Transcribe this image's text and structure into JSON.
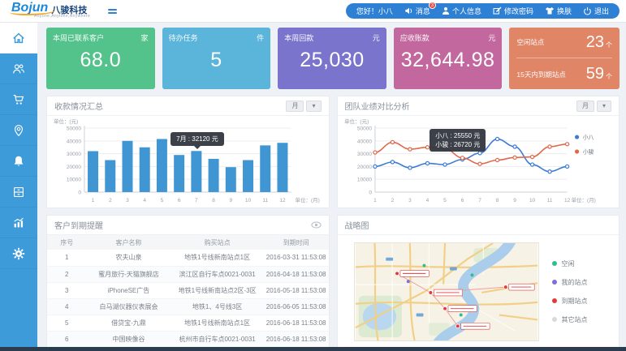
{
  "header": {
    "logo_text": "Bojun",
    "logo_cn": "八骏科技",
    "logo_tagline": "Anyone,Anytime,Anywhere",
    "menu": {
      "greeting": "您好！小八",
      "messages": "消息",
      "messages_badge": "3",
      "profile": "个人信息",
      "change_password": "修改密码",
      "change_skin": "换肤",
      "logout": "退出"
    }
  },
  "sidebar": {
    "items": [
      "home",
      "customers",
      "sales-cart",
      "sites-location",
      "reminders-bell",
      "archive",
      "reports-chart",
      "settings-gear"
    ],
    "active": "home",
    "color": "#3e9bd9"
  },
  "cards": [
    {
      "label": "本周已联系客户",
      "unit": "家",
      "value": "68.0",
      "color": "#53c28b"
    },
    {
      "label": "待办任务",
      "unit": "件",
      "value": "5",
      "color": "#5bb4d9"
    },
    {
      "label": "本周回款",
      "unit": "元",
      "value": "25,030",
      "color": "#7b74cc"
    },
    {
      "label": "应收账款",
      "unit": "元",
      "value": "32,644.98",
      "color": "#c2689e"
    }
  ],
  "site_card": {
    "color": "#e08565",
    "rows": [
      {
        "label": "空闲站点",
        "value": "23",
        "suffix": "个"
      },
      {
        "label": "15天内到期站点",
        "value": "59",
        "suffix": "个"
      }
    ]
  },
  "chart_data": [
    {
      "type": "bar",
      "title": "收款情况汇总",
      "period_selector": "月",
      "unit_y": "单位：(元)",
      "unit_x": "单位：(月)",
      "categories": [
        1,
        2,
        3,
        4,
        5,
        6,
        7,
        8,
        9,
        10,
        11,
        12
      ],
      "values": [
        32000,
        25000,
        40000,
        35000,
        41500,
        29000,
        32120,
        26000,
        19500,
        25000,
        36500,
        38500
      ],
      "ylim": [
        0,
        50000
      ],
      "yticks": [
        0,
        10000,
        20000,
        30000,
        40000,
        50000
      ],
      "bar_color": "#3f96d2",
      "grid": true,
      "tooltip": {
        "index": 6,
        "text": "7月 : 32120 元"
      }
    },
    {
      "type": "line",
      "title": "团队业绩对比分析",
      "period_selector": "月",
      "unit_y": "单位：(元)",
      "unit_x": "单位：(月)",
      "categories": [
        1,
        2,
        3,
        4,
        5,
        6,
        7,
        8,
        9,
        10,
        11,
        12
      ],
      "series": [
        {
          "name": "小八",
          "color": "#3a7bd5",
          "values": [
            20000,
            23500,
            19000,
            22500,
            21500,
            25550,
            30500,
            41500,
            35500,
            21500,
            16000,
            20000
          ]
        },
        {
          "name": "小骏",
          "color": "#e0694d",
          "values": [
            31000,
            39000,
            33500,
            35000,
            34000,
            26720,
            22000,
            25000,
            27000,
            27500,
            35500,
            37500
          ]
        }
      ],
      "ylim": [
        0,
        50000
      ],
      "yticks": [
        0,
        10000,
        20000,
        30000,
        40000,
        50000
      ],
      "grid": true,
      "legend_position": "right",
      "tooltip": {
        "index": 5,
        "lines": [
          "小八 : 25550 元",
          "小骏 : 26720 元"
        ]
      }
    }
  ],
  "table_panel": {
    "title": "客户到期提醒",
    "headers": [
      "序号",
      "客户名称",
      "购买站点",
      "到期时间"
    ],
    "rows": [
      [
        "1",
        "农夫山泉",
        "地铁1号线新南站点1区",
        "2016-03-31 11:53:08"
      ],
      [
        "2",
        "蜜月旅行-天猫旗舰店",
        "滨江区自行车点0021-0031",
        "2016-04-18 11:53:08"
      ],
      [
        "3",
        "iPhoneSE广告",
        "地铁1号线新南站点2区-3区",
        "2016-05-18 11:53:08"
      ],
      [
        "4",
        "白马湖仪器仪表展会",
        "地铁1、4号线3区",
        "2016-06-05 11:53:08"
      ],
      [
        "5",
        "借贷宝-九鼎",
        "地铁1号线新南站点1区",
        "2016-06-18 11:53:08"
      ],
      [
        "6",
        "中国映像谷",
        "杭州市自行车点0021-0031",
        "2016-06-18 11:53:08"
      ]
    ]
  },
  "map_panel": {
    "title": "战略图",
    "legend": [
      {
        "label": "空闲",
        "color": "#2fbf8f"
      },
      {
        "label": "我的站点",
        "color": "#7d6fd8"
      },
      {
        "label": "到期站点",
        "color": "#e03b3b"
      },
      {
        "label": "其它站点",
        "color": "#d9d9d9"
      }
    ]
  }
}
